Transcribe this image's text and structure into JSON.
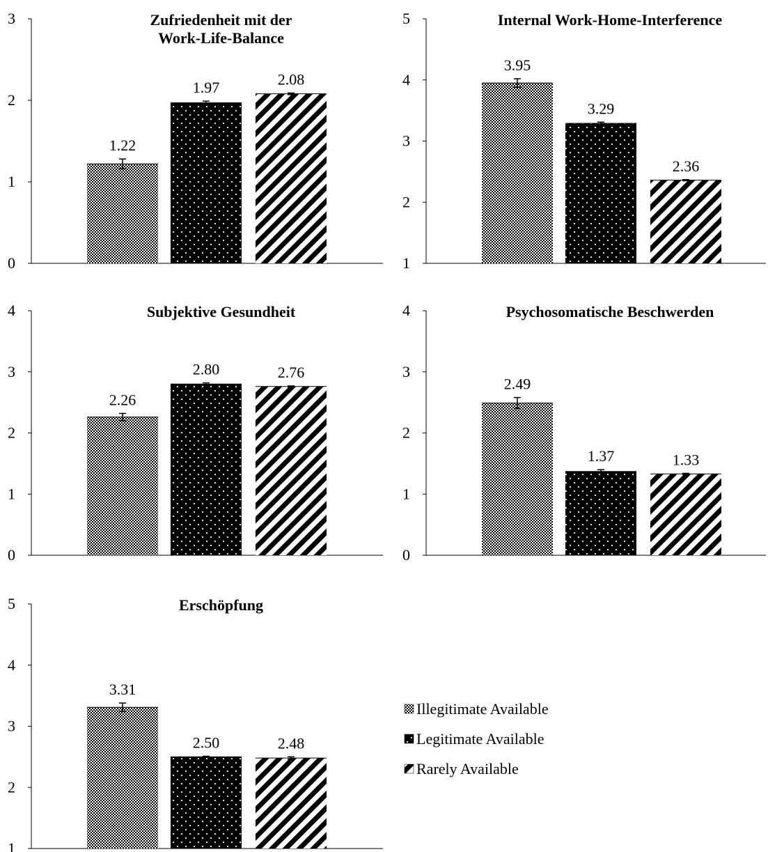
{
  "chart_data": [
    {
      "type": "bar",
      "title": [
        "Zufriedenheit mit der",
        "Work-Life-Balance"
      ],
      "categories": [
        "Illegitimate Available",
        "Legitimate Available",
        "Rarely Available"
      ],
      "values": [
        1.22,
        1.97,
        2.08
      ],
      "value_labels": [
        "1.22",
        "1.97",
        "2.08"
      ],
      "error": [
        0.06,
        0.02,
        0.01
      ],
      "ylim": [
        0,
        3
      ],
      "yticks": [
        "0",
        "1",
        "2",
        "3"
      ],
      "grid": false
    },
    {
      "type": "bar",
      "title": [
        "Internal Work-Home-Interference"
      ],
      "categories": [
        "Illegitimate Available",
        "Legitimate Available",
        "Rarely Available"
      ],
      "values": [
        3.95,
        3.29,
        2.36
      ],
      "value_labels": [
        "3.95",
        "3.29",
        "2.36"
      ],
      "error": [
        0.07,
        0.02,
        0.01
      ],
      "ylim": [
        1,
        5
      ],
      "yticks": [
        "1",
        "2",
        "3",
        "4",
        "5"
      ],
      "grid": false
    },
    {
      "type": "bar",
      "title": [
        "Subjektive Gesundheit"
      ],
      "categories": [
        "Illegitimate Available",
        "Legitimate Available",
        "Rarely Available"
      ],
      "values": [
        2.26,
        2.8,
        2.76
      ],
      "value_labels": [
        "2.26",
        "2.80",
        "2.76"
      ],
      "error": [
        0.06,
        0.02,
        0.01
      ],
      "ylim": [
        0,
        4
      ],
      "yticks": [
        "0",
        "1",
        "2",
        "3",
        "4"
      ],
      "grid": false
    },
    {
      "type": "bar",
      "title": [
        "Psychosomatische Beschwerden"
      ],
      "categories": [
        "Illegitimate Available",
        "Legitimate Available",
        "Rarely Available"
      ],
      "values": [
        2.49,
        1.37,
        1.33
      ],
      "value_labels": [
        "2.49",
        "1.37",
        "1.33"
      ],
      "error": [
        0.09,
        0.03,
        0.01
      ],
      "ylim": [
        0,
        4
      ],
      "yticks": [
        "0",
        "1",
        "2",
        "3",
        "4"
      ],
      "grid": false
    },
    {
      "type": "bar",
      "title": [
        "Erschöpfung"
      ],
      "categories": [
        "Illegitimate Available",
        "Legitimate Available",
        "Rarely Available"
      ],
      "values": [
        3.31,
        2.5,
        2.48
      ],
      "value_labels": [
        "3.31",
        "2.50",
        "2.48"
      ],
      "error": [
        0.07,
        0.01,
        0.02
      ],
      "ylim": [
        1,
        5
      ],
      "yticks": [
        "1",
        "2",
        "3",
        "4",
        "5"
      ],
      "grid": false
    }
  ],
  "legend": {
    "placement": "bottom-right",
    "items": [
      {
        "label": "Illegitimate Available",
        "pattern": "checker"
      },
      {
        "label": "Legitimate Available",
        "pattern": "dots"
      },
      {
        "label": "Rarely Available",
        "pattern": "stripes"
      }
    ]
  },
  "colors": {
    "ink": "#000000",
    "background": "#ffffff"
  }
}
